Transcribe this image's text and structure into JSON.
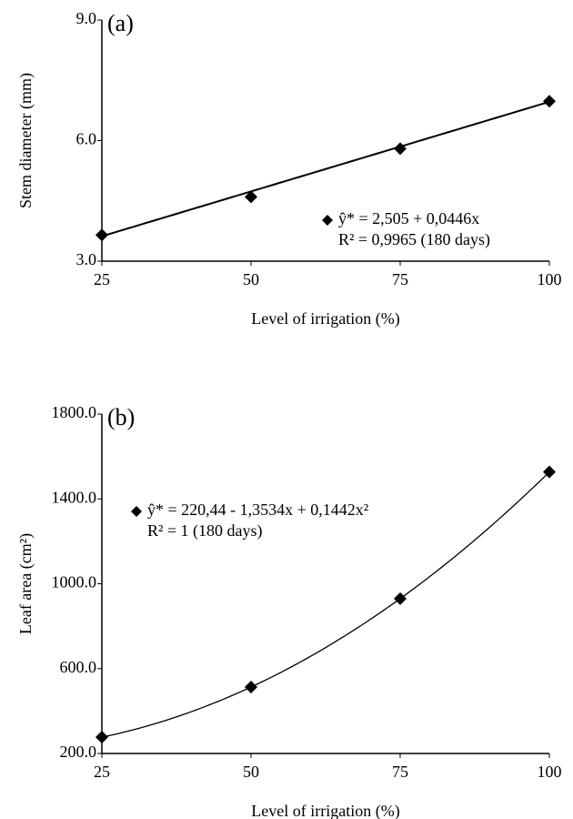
{
  "chart_data": [
    {
      "type": "scatter",
      "panel_label": "(a)",
      "xlabel": "Level of irrigation (%)",
      "ylabel": "Stem diameter (mm)",
      "x": [
        25,
        50,
        75,
        100
      ],
      "values": [
        3.65,
        4.6,
        5.8,
        6.98
      ],
      "color": "#000000",
      "xlim": [
        25,
        100
      ],
      "xticks": [
        25,
        50,
        75,
        100
      ],
      "ylim": [
        3,
        9
      ],
      "yticks": [
        {
          "value": 3,
          "label": "3.0"
        },
        {
          "value": 6,
          "label": "6.0"
        },
        {
          "value": 9,
          "label": "9.0"
        }
      ],
      "fit": {
        "coefficients": [
          2.505,
          0.0446
        ],
        "equation": "ŷ* = 2,505 + 0,0446x",
        "r2": "R² = 0,9965 (180 days)"
      }
    },
    {
      "type": "scatter",
      "panel_label": "(b)",
      "xlabel": "Level of irrigation (%)",
      "ylabel": "Leaf area (cm²)",
      "x": [
        25,
        50,
        75,
        100
      ],
      "values": [
        277,
        513,
        930,
        1527
      ],
      "color": "#000000",
      "xlim": [
        25,
        100
      ],
      "xticks": [
        25,
        50,
        75,
        100
      ],
      "ylim": [
        200,
        1800
      ],
      "yticks": [
        {
          "value": 200,
          "label": "200.0"
        },
        {
          "value": 600,
          "label": "600.0"
        },
        {
          "value": 1000,
          "label": "1000.0"
        },
        {
          "value": 1400,
          "label": "1400.0"
        },
        {
          "value": 1800,
          "label": "1800.0"
        }
      ],
      "fit": {
        "coefficients": [
          220.44,
          -1.3534,
          0.1442
        ],
        "equation": "ŷ* = 220,44 - 1,3534x + 0,1442x²",
        "r2": "R² = 1 (180 days)"
      }
    }
  ]
}
